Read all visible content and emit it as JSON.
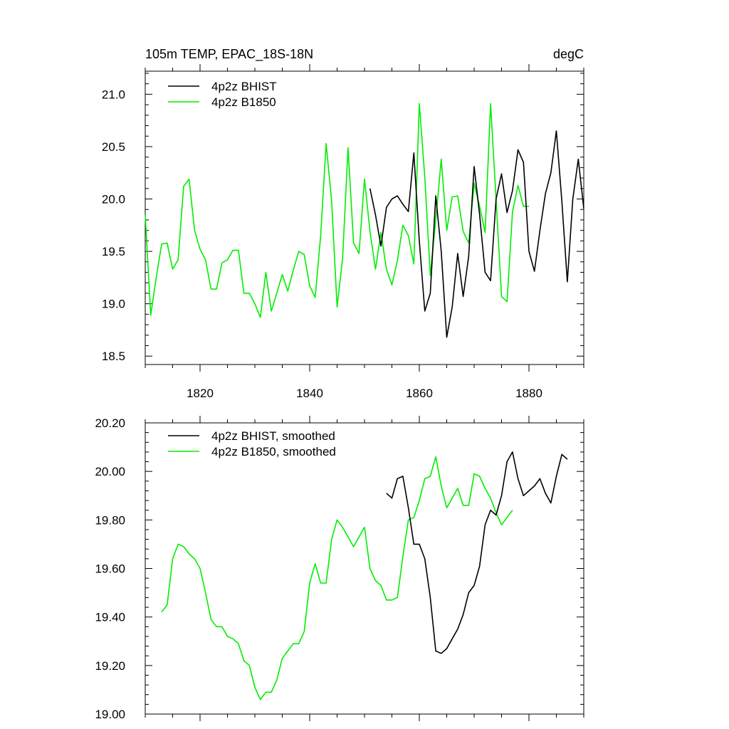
{
  "colors": {
    "bhist": "#000000",
    "b1850": "#00ee00",
    "axis": "#000000",
    "background": "#ffffff"
  },
  "chart_data": [
    {
      "type": "line",
      "title": "105m TEMP, EPAC_18S-18N",
      "units": "degC",
      "xlabel": "",
      "ylabel": "",
      "xlim": [
        1810,
        1890
      ],
      "ylim": [
        18.42,
        21.22
      ],
      "xticks": [
        "1820",
        "1840",
        "1860",
        "1880"
      ],
      "xtick_values": [
        1820,
        1840,
        1860,
        1880
      ],
      "yticks": [
        "18.5",
        "19.0",
        "19.5",
        "20.0",
        "20.5",
        "21.0"
      ],
      "ytick_values": [
        18.5,
        19.0,
        19.5,
        20.0,
        20.5,
        21.0
      ],
      "legend_position": "top-left",
      "series": [
        {
          "name": "4p2z BHIST",
          "color": "#000000",
          "x": [
            1851,
            1852,
            1853,
            1854,
            1855,
            1856,
            1857,
            1858,
            1859,
            1860,
            1861,
            1862,
            1863,
            1864,
            1865,
            1866,
            1867,
            1868,
            1869,
            1870,
            1871,
            1872,
            1873,
            1874,
            1875,
            1876,
            1877,
            1878,
            1879,
            1880,
            1881,
            1882,
            1883,
            1884,
            1885,
            1886,
            1887,
            1888,
            1889,
            1890
          ],
          "values": [
            20.1,
            19.85,
            19.55,
            19.92,
            20.0,
            20.03,
            19.95,
            19.88,
            20.44,
            19.6,
            18.93,
            19.1,
            20.03,
            19.5,
            18.68,
            18.97,
            19.48,
            19.07,
            19.45,
            20.31,
            19.85,
            19.3,
            19.22,
            20.0,
            20.24,
            19.87,
            20.08,
            20.47,
            20.35,
            19.5,
            19.31,
            19.7,
            20.05,
            20.25,
            20.65,
            19.98,
            19.21,
            20.0,
            20.38,
            19.91
          ]
        },
        {
          "name": "4p2z B1850",
          "color": "#00ee00",
          "x": [
            1810,
            1811,
            1812,
            1813,
            1814,
            1815,
            1816,
            1817,
            1818,
            1819,
            1820,
            1821,
            1822,
            1823,
            1824,
            1825,
            1826,
            1827,
            1828,
            1829,
            1830,
            1831,
            1832,
            1833,
            1834,
            1835,
            1836,
            1837,
            1838,
            1839,
            1840,
            1841,
            1842,
            1843,
            1844,
            1845,
            1846,
            1847,
            1848,
            1849,
            1850,
            1851,
            1852,
            1853,
            1854,
            1855,
            1856,
            1857,
            1858,
            1859,
            1860,
            1861,
            1862,
            1863,
            1864,
            1865,
            1866,
            1867,
            1868,
            1869,
            1870,
            1871,
            1872,
            1873,
            1874,
            1875,
            1876,
            1877,
            1878,
            1879,
            1880
          ],
          "values": [
            19.85,
            18.89,
            19.25,
            19.57,
            19.58,
            19.33,
            19.42,
            20.12,
            20.19,
            19.7,
            19.52,
            19.42,
            19.14,
            19.14,
            19.39,
            19.42,
            19.51,
            19.51,
            19.1,
            19.1,
            19.0,
            18.87,
            19.3,
            18.93,
            19.1,
            19.28,
            19.12,
            19.32,
            19.5,
            19.47,
            19.17,
            19.06,
            19.65,
            20.53,
            19.98,
            18.97,
            19.43,
            20.49,
            19.58,
            19.48,
            20.19,
            19.69,
            19.33,
            19.68,
            19.33,
            19.18,
            19.41,
            19.75,
            19.65,
            19.38,
            20.91,
            20.21,
            19.27,
            19.8,
            20.38,
            19.7,
            20.02,
            20.03,
            19.69,
            19.58,
            20.15,
            19.93,
            19.68,
            20.91,
            20.0,
            19.07,
            19.02,
            19.88,
            20.13,
            19.93,
            19.93
          ]
        }
      ]
    },
    {
      "type": "line",
      "title": "",
      "xlabel": "",
      "ylabel": "",
      "xlim": [
        1810,
        1890
      ],
      "ylim": [
        19.0,
        20.2
      ],
      "xtick_values": [
        1820,
        1840,
        1860,
        1880
      ],
      "yticks": [
        "19.00",
        "19.20",
        "19.40",
        "19.60",
        "19.80",
        "20.00",
        "20.20"
      ],
      "ytick_values": [
        19.0,
        19.2,
        19.4,
        19.6,
        19.8,
        20.0,
        20.2
      ],
      "legend_position": "top-left",
      "series": [
        {
          "name": "4p2z BHIST, smoothed",
          "color": "#000000",
          "x": [
            1854,
            1855,
            1856,
            1857,
            1858,
            1859,
            1860,
            1861,
            1862,
            1863,
            1864,
            1865,
            1866,
            1867,
            1868,
            1869,
            1870,
            1871,
            1872,
            1873,
            1874,
            1875,
            1876,
            1877,
            1878,
            1879,
            1880,
            1881,
            1882,
            1883,
            1884,
            1885,
            1886,
            1887
          ],
          "values": [
            19.91,
            19.89,
            19.97,
            19.98,
            19.85,
            19.7,
            19.7,
            19.64,
            19.48,
            19.26,
            19.25,
            19.27,
            19.31,
            19.35,
            19.41,
            19.5,
            19.53,
            19.61,
            19.78,
            19.84,
            19.82,
            19.9,
            20.04,
            20.08,
            19.97,
            19.9,
            19.92,
            19.94,
            19.97,
            19.91,
            19.87,
            19.98,
            20.07,
            20.05
          ]
        },
        {
          "name": "4p2z B1850, smoothed",
          "color": "#00ee00",
          "x": [
            1813,
            1814,
            1815,
            1816,
            1817,
            1818,
            1819,
            1820,
            1821,
            1822,
            1823,
            1824,
            1825,
            1826,
            1827,
            1828,
            1829,
            1830,
            1831,
            1832,
            1833,
            1834,
            1835,
            1836,
            1837,
            1838,
            1839,
            1840,
            1841,
            1842,
            1843,
            1844,
            1845,
            1846,
            1847,
            1848,
            1849,
            1850,
            1851,
            1852,
            1853,
            1854,
            1855,
            1856,
            1857,
            1858,
            1859,
            1860,
            1861,
            1862,
            1863,
            1864,
            1865,
            1866,
            1867,
            1868,
            1869,
            1870,
            1871,
            1872,
            1873,
            1874,
            1875,
            1876,
            1877
          ],
          "values": [
            19.42,
            19.45,
            19.64,
            19.7,
            19.69,
            19.66,
            19.64,
            19.6,
            19.5,
            19.39,
            19.36,
            19.36,
            19.32,
            19.31,
            19.29,
            19.22,
            19.2,
            19.11,
            19.06,
            19.09,
            19.09,
            19.14,
            19.23,
            19.26,
            19.29,
            19.29,
            19.34,
            19.54,
            19.62,
            19.54,
            19.54,
            19.72,
            19.8,
            19.77,
            19.73,
            19.69,
            19.73,
            19.77,
            19.6,
            19.55,
            19.53,
            19.47,
            19.47,
            19.48,
            19.65,
            19.8,
            19.81,
            19.88,
            19.97,
            19.98,
            20.06,
            19.94,
            19.85,
            19.89,
            19.93,
            19.86,
            19.86,
            19.99,
            19.98,
            19.93,
            19.89,
            19.83,
            19.78,
            19.81,
            19.84
          ]
        }
      ]
    }
  ]
}
